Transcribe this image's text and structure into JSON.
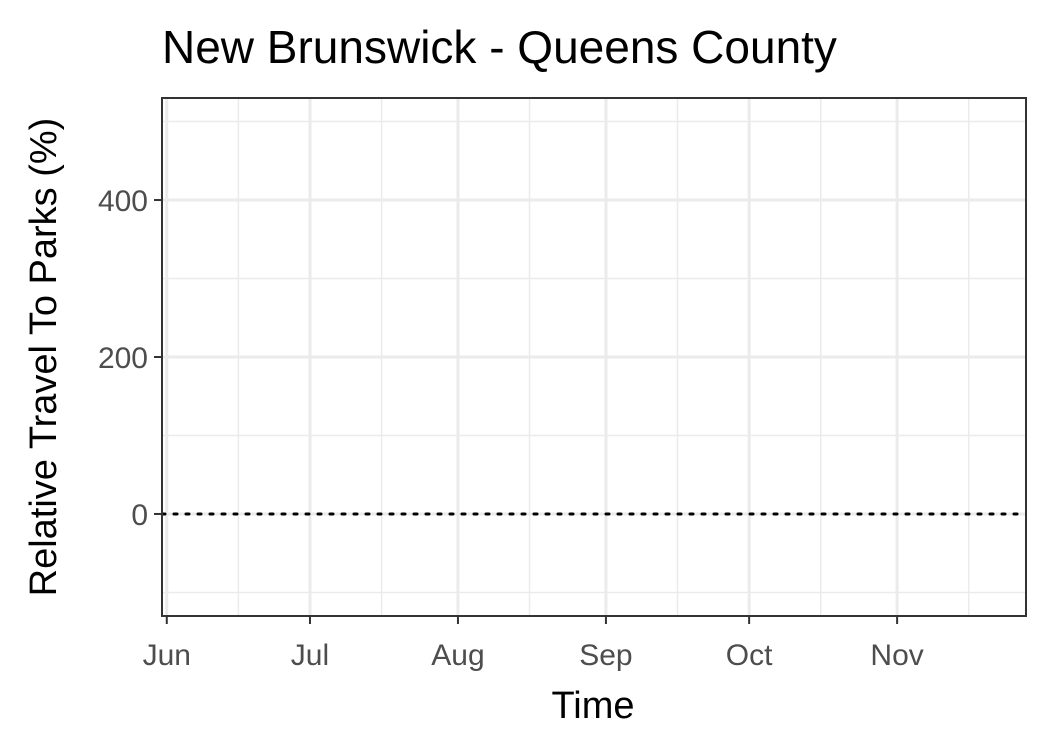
{
  "chart_data": {
    "type": "line",
    "title": "New Brunswick - Queens County",
    "xlabel": "Time",
    "ylabel": "Relative Travel To Parks (%)",
    "x_type": "date",
    "xlim": [
      "2020-05-31",
      "2020-11-28"
    ],
    "ylim": [
      -130,
      530
    ],
    "x_ticks": [
      {
        "label": "Jun",
        "date": "2020-06-01"
      },
      {
        "label": "Jul",
        "date": "2020-07-01"
      },
      {
        "label": "Aug",
        "date": "2020-08-01"
      },
      {
        "label": "Sep",
        "date": "2020-09-01"
      },
      {
        "label": "Oct",
        "date": "2020-10-01"
      },
      {
        "label": "Nov",
        "date": "2020-11-01"
      }
    ],
    "x_minor_ticks": [
      "2020-06-16",
      "2020-07-16",
      "2020-08-16",
      "2020-09-16",
      "2020-10-16",
      "2020-11-16"
    ],
    "y_ticks": [
      0,
      200,
      400
    ],
    "y_minor_ticks": [
      -100,
      100,
      300,
      500
    ],
    "reference_line": {
      "y": 0,
      "style": "dotted",
      "color": "#000000"
    },
    "grid": true,
    "series": []
  }
}
